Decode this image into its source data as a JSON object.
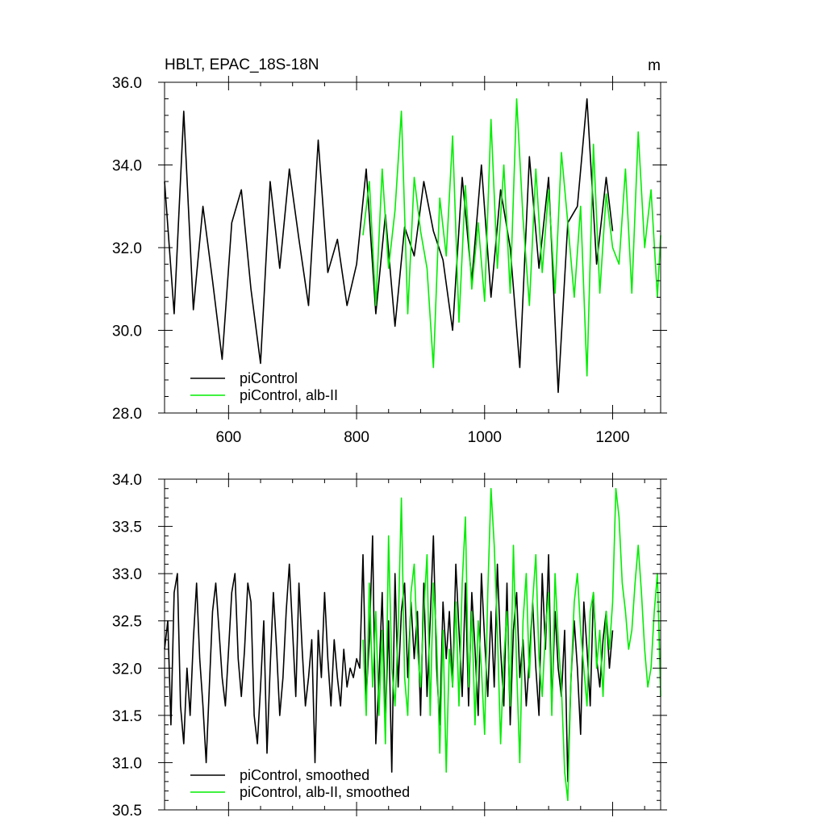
{
  "colors": {
    "piControl": "#000000",
    "alb_II": "#00ee00",
    "axis": "#000000"
  },
  "chart_data": [
    {
      "type": "line",
      "title": "HBLT, EPAC_18S-18N",
      "units": "m",
      "xlim": [
        500,
        1275
      ],
      "ylim": [
        28,
        36
      ],
      "xticks": [
        600,
        800,
        1000,
        1200
      ],
      "xtick_labels": [
        "600",
        "800",
        "1000",
        "1200"
      ],
      "yticks": [
        28,
        30,
        32,
        34,
        36
      ],
      "ytick_labels": [
        "28.0",
        "30.0",
        "32.0",
        "34.0",
        "36.0"
      ],
      "grid": false,
      "legend_position": "bottom-left",
      "series": [
        {
          "name": "piControl",
          "color": "#000000",
          "x": [
            500,
            515,
            530,
            545,
            560,
            575,
            590,
            605,
            620,
            635,
            650,
            665,
            680,
            695,
            710,
            725,
            740,
            755,
            770,
            785,
            800,
            815,
            830,
            845,
            860,
            875,
            890,
            905,
            920,
            935,
            950,
            965,
            980,
            995,
            1010,
            1025,
            1040,
            1055,
            1070,
            1085,
            1100,
            1115,
            1130,
            1145,
            1160,
            1175,
            1190,
            1200
          ],
          "y": [
            33.6,
            30.4,
            35.3,
            30.5,
            33.0,
            31.2,
            29.3,
            32.6,
            33.4,
            31.0,
            29.2,
            33.6,
            31.5,
            33.9,
            32.2,
            30.6,
            34.6,
            31.4,
            32.2,
            30.6,
            31.6,
            33.9,
            30.4,
            32.8,
            30.1,
            32.5,
            31.8,
            33.6,
            32.4,
            31.7,
            30.0,
            33.7,
            31.2,
            34.0,
            30.8,
            33.4,
            32.0,
            29.1,
            34.2,
            31.5,
            33.7,
            28.5,
            32.6,
            33.0,
            35.6,
            31.6,
            33.7,
            32.4
          ]
        },
        {
          "name": "piControl, alb-II",
          "color": "#00ee00",
          "x": [
            810,
            820,
            830,
            840,
            850,
            860,
            870,
            880,
            890,
            900,
            910,
            920,
            930,
            940,
            950,
            960,
            970,
            980,
            990,
            1000,
            1010,
            1020,
            1030,
            1040,
            1050,
            1060,
            1070,
            1080,
            1090,
            1100,
            1110,
            1120,
            1130,
            1140,
            1150,
            1160,
            1170,
            1180,
            1190,
            1200,
            1210,
            1220,
            1230,
            1240,
            1250,
            1260,
            1270,
            1275
          ],
          "y": [
            32.3,
            33.6,
            30.6,
            33.9,
            31.5,
            32.9,
            35.3,
            30.4,
            33.7,
            32.4,
            31.5,
            29.1,
            33.2,
            31.8,
            34.7,
            30.2,
            33.5,
            31.0,
            32.6,
            30.7,
            35.1,
            31.5,
            34.0,
            30.9,
            35.6,
            32.7,
            30.6,
            33.9,
            31.4,
            33.4,
            30.9,
            34.3,
            32.6,
            30.8,
            33.0,
            28.9,
            34.5,
            30.9,
            33.3,
            32.0,
            31.6,
            33.9,
            30.9,
            34.8,
            32.0,
            33.4,
            30.8,
            32.3
          ]
        }
      ]
    },
    {
      "type": "line",
      "xlim": [
        500,
        1275
      ],
      "ylim": [
        30.5,
        34.0
      ],
      "xticks": [
        600,
        800,
        1000,
        1200
      ],
      "yticks": [
        30.5,
        31.0,
        31.5,
        32.0,
        32.5,
        33.0,
        33.5,
        34.0
      ],
      "ytick_labels": [
        "30.5",
        "31.0",
        "31.5",
        "32.0",
        "32.5",
        "33.0",
        "33.5",
        "34.0"
      ],
      "grid": false,
      "legend_position": "bottom-left",
      "series": [
        {
          "name": "piControl, smoothed",
          "color": "#000000",
          "x": [
            500,
            505,
            510,
            515,
            520,
            525,
            530,
            535,
            540,
            545,
            550,
            555,
            560,
            565,
            570,
            575,
            580,
            585,
            590,
            595,
            600,
            605,
            610,
            615,
            620,
            625,
            630,
            635,
            640,
            645,
            650,
            655,
            660,
            665,
            670,
            675,
            680,
            685,
            690,
            695,
            700,
            705,
            710,
            715,
            720,
            725,
            730,
            735,
            740,
            745,
            750,
            755,
            760,
            765,
            770,
            775,
            780,
            785,
            790,
            795,
            800,
            805,
            810,
            815,
            820,
            825,
            830,
            835,
            840,
            845,
            850,
            855,
            860,
            865,
            870,
            875,
            880,
            885,
            890,
            895,
            900,
            905,
            910,
            915,
            920,
            925,
            930,
            935,
            940,
            945,
            950,
            955,
            960,
            965,
            970,
            975,
            980,
            985,
            990,
            995,
            1000,
            1005,
            1010,
            1015,
            1020,
            1025,
            1030,
            1035,
            1040,
            1045,
            1050,
            1055,
            1060,
            1065,
            1070,
            1075,
            1080,
            1085,
            1090,
            1095,
            1100,
            1105,
            1110,
            1115,
            1120,
            1125,
            1130,
            1135,
            1140,
            1145,
            1150,
            1155,
            1160,
            1165,
            1170,
            1175,
            1180,
            1185,
            1190,
            1195,
            1200
          ],
          "y": [
            32.2,
            32.5,
            31.4,
            32.8,
            33.0,
            31.6,
            31.2,
            32.0,
            31.5,
            32.3,
            32.9,
            32.1,
            31.6,
            31.0,
            31.8,
            32.6,
            32.9,
            32.4,
            31.9,
            31.6,
            32.2,
            32.8,
            33.0,
            32.1,
            31.7,
            32.2,
            32.9,
            32.7,
            31.5,
            31.2,
            31.8,
            32.5,
            31.1,
            32.0,
            32.8,
            32.2,
            31.5,
            31.9,
            32.6,
            33.1,
            32.4,
            31.7,
            32.9,
            32.2,
            31.6,
            31.9,
            32.3,
            31.0,
            32.4,
            31.9,
            32.8,
            32.1,
            31.6,
            32.3,
            31.9,
            31.6,
            32.2,
            31.8,
            32.0,
            31.9,
            32.1,
            32.0,
            33.2,
            31.7,
            32.3,
            33.4,
            31.2,
            31.9,
            32.8,
            31.4,
            32.5,
            30.9,
            33.0,
            31.8,
            32.6,
            32.9,
            31.9,
            32.7,
            32.1,
            32.6,
            31.5,
            32.9,
            31.7,
            32.5,
            33.4,
            32.0,
            31.4,
            32.7,
            32.1,
            32.6,
            31.8,
            33.1,
            32.4,
            31.7,
            32.9,
            31.6,
            32.8,
            32.2,
            31.5,
            33.0,
            32.3,
            31.7,
            32.6,
            31.8,
            33.1,
            32.2,
            31.6,
            32.9,
            31.4,
            32.4,
            32.8,
            31.9,
            32.3,
            31.6,
            32.1,
            32.7,
            32.0,
            31.5,
            33.0,
            32.2,
            33.2,
            31.6,
            32.6,
            32.0,
            31.7,
            32.4,
            30.8,
            31.9,
            32.5,
            32.0,
            31.3,
            32.7,
            32.2,
            31.6,
            32.8,
            32.1,
            31.8,
            32.3,
            32.6,
            32.0,
            32.4
          ]
        },
        {
          "name": "piControl, alb-II, smoothed",
          "color": "#00ee00",
          "x": [
            810,
            815,
            820,
            825,
            830,
            835,
            840,
            845,
            850,
            855,
            860,
            865,
            870,
            875,
            880,
            885,
            890,
            895,
            900,
            905,
            910,
            915,
            920,
            925,
            930,
            935,
            940,
            945,
            950,
            955,
            960,
            965,
            970,
            975,
            980,
            985,
            990,
            995,
            1000,
            1005,
            1010,
            1015,
            1020,
            1025,
            1030,
            1035,
            1040,
            1045,
            1050,
            1055,
            1060,
            1065,
            1070,
            1075,
            1080,
            1085,
            1090,
            1095,
            1100,
            1105,
            1110,
            1115,
            1120,
            1125,
            1130,
            1135,
            1140,
            1145,
            1150,
            1155,
            1160,
            1165,
            1170,
            1175,
            1180,
            1185,
            1190,
            1195,
            1200,
            1205,
            1210,
            1215,
            1220,
            1225,
            1230,
            1235,
            1240,
            1245,
            1250,
            1255,
            1260,
            1265,
            1270,
            1275
          ],
          "y": [
            32.3,
            31.5,
            32.9,
            31.8,
            32.6,
            31.5,
            32.4,
            31.2,
            33.4,
            32.0,
            31.6,
            32.4,
            33.8,
            31.9,
            31.5,
            32.8,
            33.1,
            32.2,
            31.8,
            32.6,
            33.2,
            31.5,
            32.9,
            32.3,
            31.1,
            32.4,
            30.9,
            32.2,
            31.8,
            32.7,
            31.6,
            32.9,
            33.6,
            31.8,
            32.6,
            31.4,
            32.5,
            32.0,
            31.3,
            32.8,
            33.9,
            33.3,
            32.4,
            31.2,
            32.1,
            32.6,
            31.6,
            33.3,
            32.0,
            31.0,
            32.5,
            33.0,
            31.9,
            32.7,
            33.2,
            32.1,
            31.7,
            32.4,
            32.8,
            31.5,
            33.0,
            32.3,
            31.8,
            30.9,
            30.6,
            31.9,
            32.7,
            33.0,
            32.4,
            32.0,
            31.6,
            32.6,
            32.8,
            32.0,
            32.4,
            31.7,
            32.6,
            32.2,
            32.7,
            33.9,
            33.6,
            32.9,
            32.6,
            32.2,
            32.4,
            32.9,
            33.3,
            32.8,
            32.2,
            31.8,
            32.0,
            32.6,
            33.0,
            31.7
          ]
        }
      ]
    }
  ]
}
